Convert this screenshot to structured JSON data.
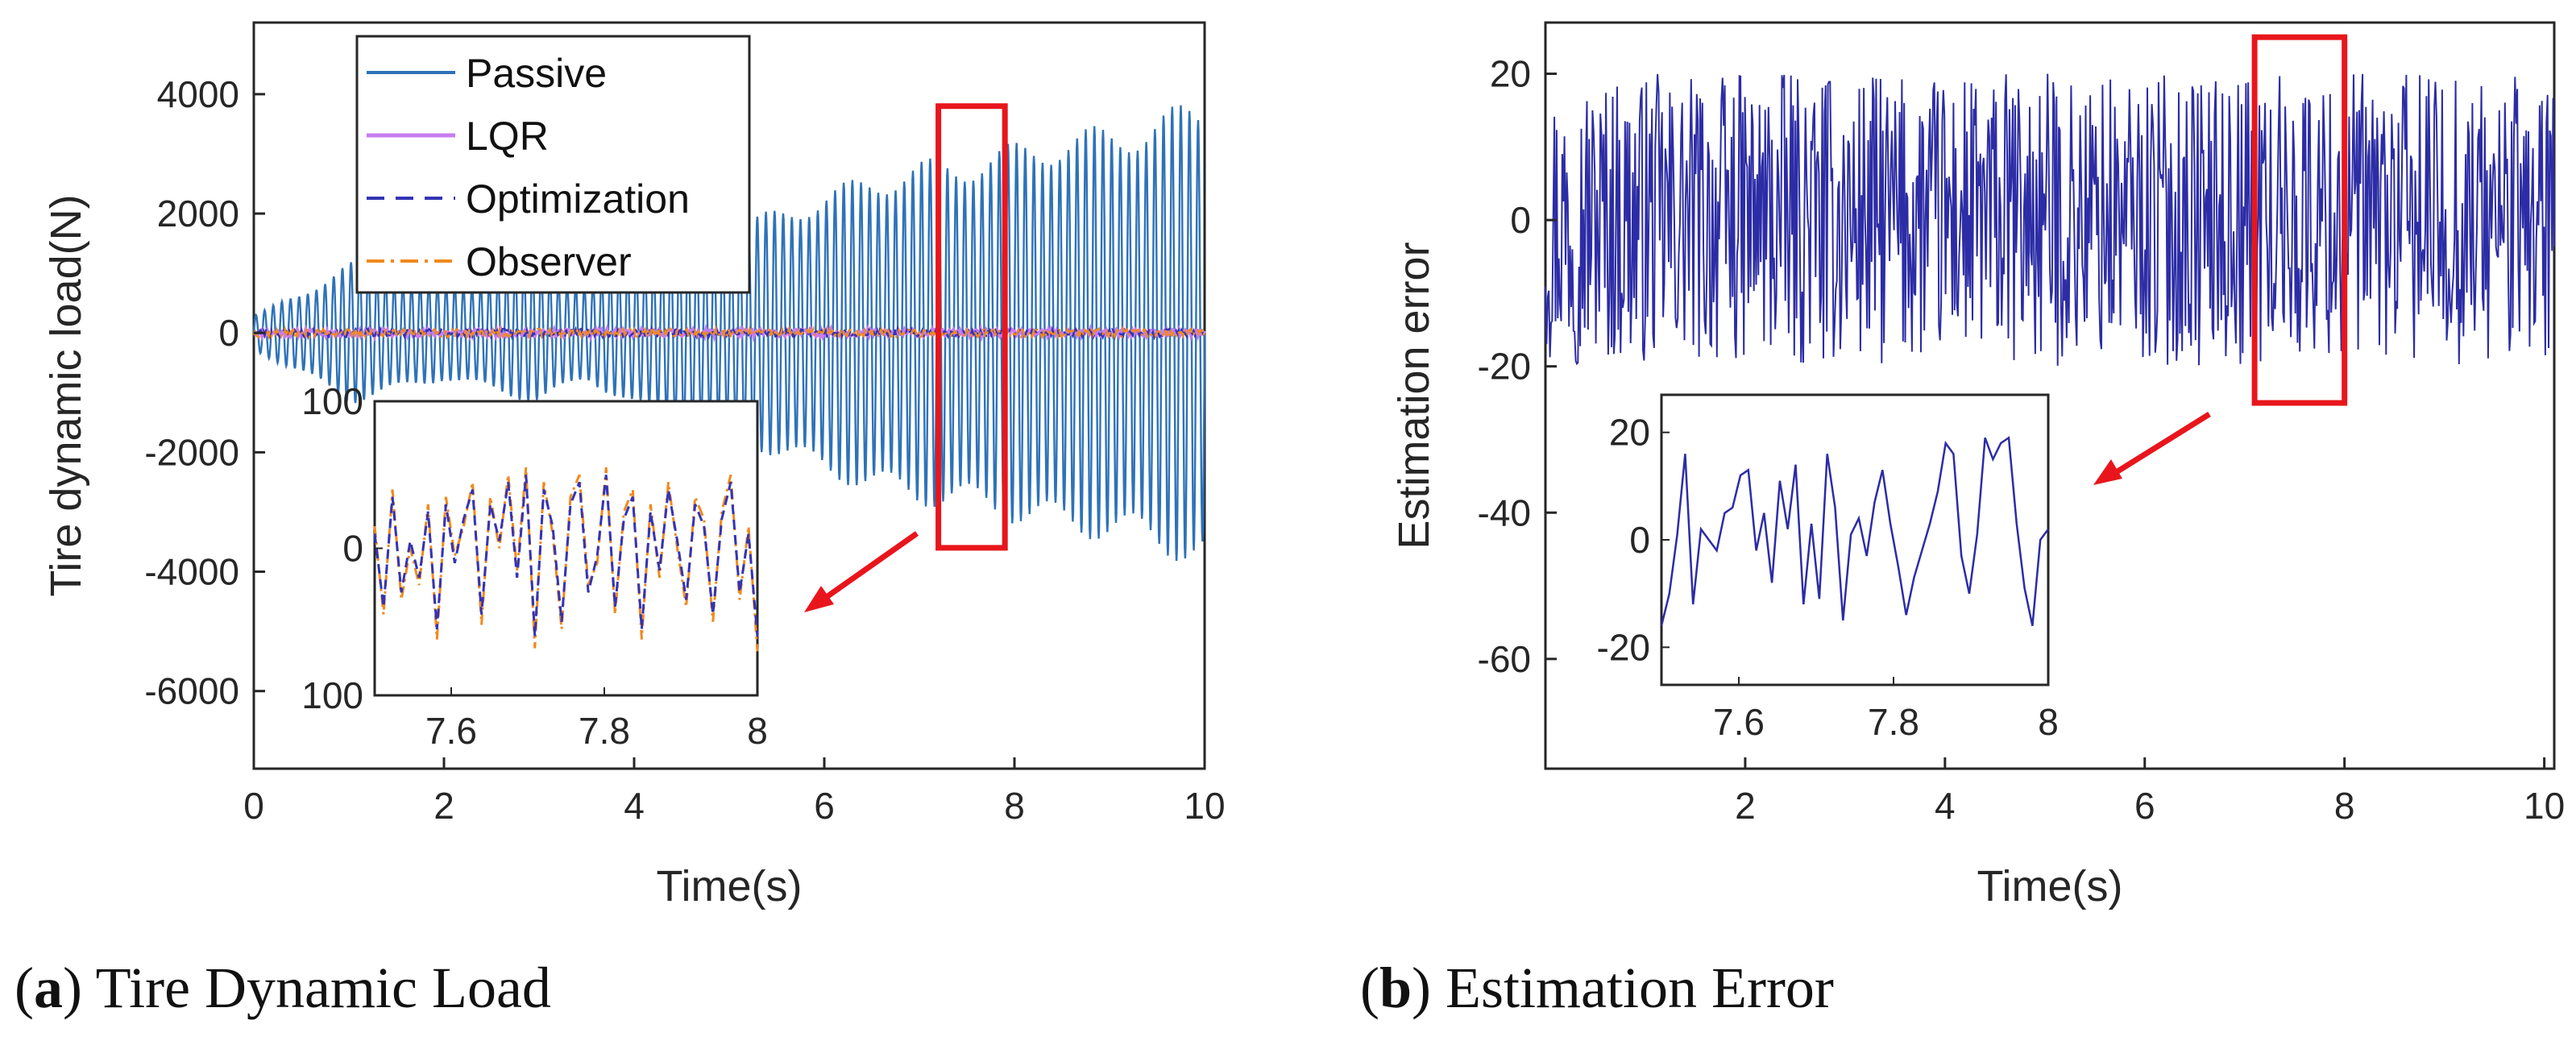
{
  "colors": {
    "passive": "#2e72b8",
    "lqr": "#c77cf0",
    "optimization": "#3434b4",
    "observer": "#f08a1e",
    "error": "#2c2ca6",
    "highlight": "#e8161c",
    "axis": "#262626"
  },
  "captions": {
    "a_letter": "a",
    "a_text": "Tire Dynamic Load",
    "b_letter": "b",
    "b_text": "Estimation Error"
  },
  "chart_data": [
    {
      "id": "a",
      "type": "line",
      "xlabel": "Time(s)",
      "ylabel": "Tire dynamic load(N)",
      "xlim": [
        0,
        10
      ],
      "ylim": [
        -7300,
        5200
      ],
      "xticks": [
        0,
        2,
        4,
        6,
        8,
        10
      ],
      "yticks": [
        -6000,
        -4000,
        -2000,
        0,
        2000,
        4000
      ],
      "legend_position": "top-left",
      "series": [
        {
          "name": "Passive",
          "style": "solid",
          "envelope": {
            "t": [
              0,
              0.5,
              1.0,
              1.5,
              2.0,
              2.5,
              3.0,
              3.5,
              4.0,
              4.5,
              5.0,
              5.5,
              6.0,
              6.5,
              7.0,
              7.5,
              8.0,
              8.5,
              9.0,
              9.5,
              10.0
            ],
            "amp": [
              300,
              700,
              1200,
              1000,
              800,
              1000,
              1200,
              800,
              1300,
              1600,
              1800,
              2100,
              2400,
              2700,
              2900,
              3000,
              3200,
              3400,
              3500,
              3700,
              4000
            ]
          },
          "frequency_hz": 11
        },
        {
          "name": "LQR",
          "style": "solid",
          "amplitude": 60
        },
        {
          "name": "Optimization",
          "style": "dashed",
          "amplitude": 70
        },
        {
          "name": "Observer",
          "style": "dash-dot",
          "amplitude": 70
        }
      ],
      "highlight_box": {
        "x": [
          7.2,
          7.9
        ],
        "y": [
          -3600,
          3800
        ]
      },
      "inset": {
        "xlim": [
          7.5,
          8.0
        ],
        "ylim": [
          -100,
          100
        ],
        "xticks": [
          7.6,
          7.8,
          8
        ],
        "yticks": [
          -100,
          0,
          100
        ],
        "ytick_labels": [
          "100",
          "0",
          "100"
        ],
        "optimization_values": [
          10,
          -40,
          35,
          -30,
          5,
          -20,
          25,
          -55,
          30,
          -10,
          20,
          40,
          -45,
          30,
          5,
          45,
          -20,
          50,
          -60,
          40,
          15,
          -50,
          30,
          45,
          -30,
          -5,
          50,
          -40,
          20,
          35,
          -55,
          25,
          -15,
          40,
          5,
          -35,
          30,
          15,
          -45,
          20,
          45,
          -30,
          10,
          -60
        ],
        "observer_values": [
          15,
          -45,
          40,
          -35,
          0,
          -25,
          30,
          -62,
          35,
          -5,
          15,
          45,
          -52,
          35,
          0,
          50,
          -15,
          55,
          -68,
          45,
          10,
          -55,
          35,
          50,
          -25,
          -10,
          55,
          -45,
          25,
          40,
          -62,
          30,
          -20,
          45,
          0,
          -40,
          35,
          20,
          -50,
          25,
          50,
          -35,
          15,
          -70
        ]
      }
    },
    {
      "id": "b",
      "type": "line",
      "xlabel": "Time(s)",
      "ylabel": "Estimation error",
      "xlim": [
        0,
        10.1
      ],
      "ylim": [
        -75,
        27
      ],
      "xticks": [
        2,
        4,
        6,
        8,
        10
      ],
      "yticks": [
        -60,
        -40,
        -20,
        0,
        20
      ],
      "series": [
        {
          "name": "",
          "style": "solid",
          "amplitude": 20,
          "note": "noise-like signal spanning -20 to 20"
        }
      ],
      "highlight_box": {
        "x": [
          7.1,
          8.0
        ],
        "y": [
          -25,
          25
        ]
      },
      "inset": {
        "xlim": [
          7.5,
          8.0
        ],
        "ylim": [
          -27,
          27
        ],
        "xticks": [
          7.6,
          7.8,
          8
        ],
        "yticks": [
          -20,
          0,
          20
        ],
        "values": [
          -16,
          -10,
          1,
          16,
          -12,
          2,
          0,
          -2,
          5,
          6,
          12,
          13,
          -2,
          5,
          -8,
          11,
          2,
          14,
          -12,
          3,
          -11,
          16,
          6,
          -15,
          1,
          4,
          -3,
          7,
          13,
          3,
          -5,
          -14,
          -7,
          -2,
          3,
          9,
          18,
          16,
          -3,
          -10,
          1,
          19,
          15,
          18,
          19,
          3,
          -9,
          -16,
          0,
          2
        ]
      }
    }
  ]
}
